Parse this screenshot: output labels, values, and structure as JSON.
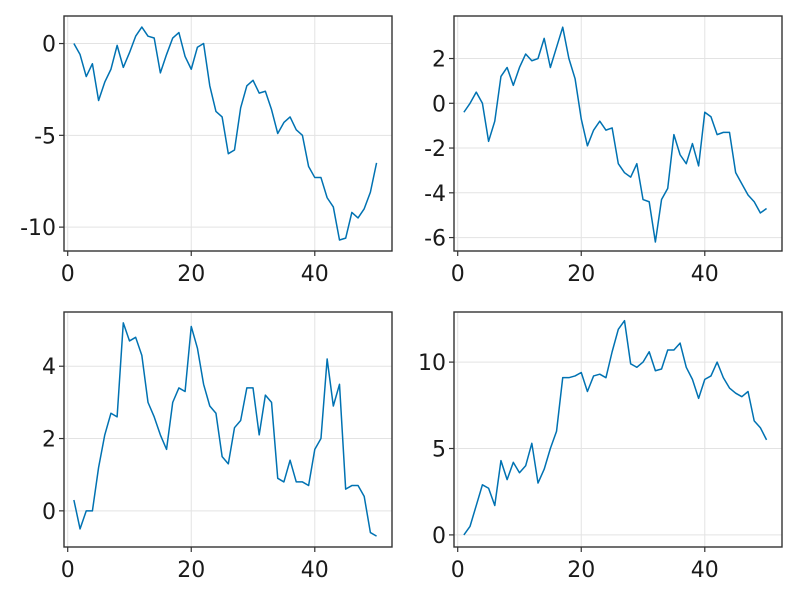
{
  "colors": {
    "line": "#0072B2"
  },
  "chart_data": [
    {
      "type": "line",
      "xlim": [
        -0.6,
        52.5
      ],
      "ylim": [
        -11.3,
        1.5
      ],
      "xticks": [
        0,
        20,
        40
      ],
      "xtick_labels": [
        "0",
        "20",
        "40"
      ],
      "yticks": [
        0,
        -5,
        -10
      ],
      "ytick_labels": [
        "0",
        "-5",
        "-10"
      ],
      "grid": true,
      "series": [
        {
          "x": [
            1,
            2,
            3,
            4,
            5,
            6,
            7,
            8,
            9,
            10,
            11,
            12,
            13,
            14,
            15,
            16,
            17,
            18,
            19,
            20,
            21,
            22,
            23,
            24,
            25,
            26,
            27,
            28,
            29,
            30,
            31,
            32,
            33,
            34,
            35,
            36,
            37,
            38,
            39,
            40,
            41,
            42,
            43,
            44,
            45,
            46,
            47,
            48,
            49,
            50
          ],
          "y": [
            0.0,
            -0.6,
            -1.8,
            -1.1,
            -3.1,
            -2.1,
            -1.4,
            -0.1,
            -1.3,
            -0.5,
            0.4,
            0.9,
            0.4,
            0.3,
            -1.6,
            -0.6,
            0.3,
            0.6,
            -0.7,
            -1.4,
            -0.2,
            0.0,
            -2.3,
            -3.7,
            -4.0,
            -6.0,
            -5.8,
            -3.5,
            -2.3,
            -2.0,
            -2.7,
            -2.6,
            -3.6,
            -4.9,
            -4.3,
            -4.0,
            -4.7,
            -5.0,
            -6.7,
            -7.3,
            -7.3,
            -8.4,
            -8.9,
            -10.7,
            -10.6,
            -9.2,
            -9.5,
            -9.0,
            -8.1,
            -6.5
          ]
        }
      ]
    },
    {
      "type": "line",
      "xlim": [
        -0.6,
        52.5
      ],
      "ylim": [
        -6.6,
        3.9
      ],
      "xticks": [
        0,
        20,
        40
      ],
      "xtick_labels": [
        "0",
        "20",
        "40"
      ],
      "yticks": [
        2,
        0,
        -2,
        -4,
        -6
      ],
      "ytick_labels": [
        "2",
        "0",
        "-2",
        "-4",
        "-6"
      ],
      "grid": true,
      "series": [
        {
          "x": [
            1,
            2,
            3,
            4,
            5,
            6,
            7,
            8,
            9,
            10,
            11,
            12,
            13,
            14,
            15,
            16,
            17,
            18,
            19,
            20,
            21,
            22,
            23,
            24,
            25,
            26,
            27,
            28,
            29,
            30,
            31,
            32,
            33,
            34,
            35,
            36,
            37,
            38,
            39,
            40,
            41,
            42,
            43,
            44,
            45,
            46,
            47,
            48,
            49,
            50
          ],
          "y": [
            -0.4,
            0.0,
            0.5,
            0.0,
            -1.7,
            -0.8,
            1.2,
            1.6,
            0.8,
            1.6,
            2.2,
            1.9,
            2.0,
            2.9,
            1.6,
            2.5,
            3.4,
            2.0,
            1.1,
            -0.7,
            -1.9,
            -1.2,
            -0.8,
            -1.2,
            -1.1,
            -2.7,
            -3.1,
            -3.3,
            -2.7,
            -4.3,
            -4.4,
            -6.2,
            -4.3,
            -3.8,
            -1.4,
            -2.3,
            -2.7,
            -1.8,
            -2.8,
            -0.4,
            -0.6,
            -1.4,
            -1.3,
            -1.3,
            -3.1,
            -3.6,
            -4.1,
            -4.4,
            -4.9,
            -4.7
          ]
        }
      ]
    },
    {
      "type": "line",
      "xlim": [
        -0.6,
        52.5
      ],
      "ylim": [
        -1.0,
        5.5
      ],
      "xticks": [
        0,
        20,
        40
      ],
      "xtick_labels": [
        "0",
        "20",
        "40"
      ],
      "yticks": [
        4,
        2,
        0
      ],
      "ytick_labels": [
        "4",
        "2",
        "0"
      ],
      "grid": true,
      "series": [
        {
          "x": [
            1,
            2,
            3,
            4,
            5,
            6,
            7,
            8,
            9,
            10,
            11,
            12,
            13,
            14,
            15,
            16,
            17,
            18,
            19,
            20,
            21,
            22,
            23,
            24,
            25,
            26,
            27,
            28,
            29,
            30,
            31,
            32,
            33,
            34,
            35,
            36,
            37,
            38,
            39,
            40,
            41,
            42,
            43,
            44,
            45,
            46,
            47,
            48,
            49,
            50
          ],
          "y": [
            0.3,
            -0.5,
            0.0,
            0.0,
            1.2,
            2.1,
            2.7,
            2.6,
            5.2,
            4.7,
            4.8,
            4.3,
            3.0,
            2.6,
            2.1,
            1.7,
            3.0,
            3.4,
            3.3,
            5.1,
            4.5,
            3.5,
            2.9,
            2.7,
            1.5,
            1.3,
            2.3,
            2.5,
            3.4,
            3.4,
            2.1,
            3.2,
            3.0,
            0.9,
            0.8,
            1.4,
            0.8,
            0.8,
            0.7,
            1.7,
            2.0,
            4.2,
            2.9,
            3.5,
            0.6,
            0.7,
            0.7,
            0.4,
            -0.6,
            -0.7
          ]
        }
      ]
    },
    {
      "type": "line",
      "xlim": [
        -0.6,
        52.5
      ],
      "ylim": [
        -0.7,
        12.9
      ],
      "xticks": [
        0,
        20,
        40
      ],
      "xtick_labels": [
        "0",
        "20",
        "40"
      ],
      "yticks": [
        10,
        5,
        0
      ],
      "ytick_labels": [
        "10",
        "5",
        "0"
      ],
      "grid": true,
      "series": [
        {
          "x": [
            1,
            2,
            3,
            4,
            5,
            6,
            7,
            8,
            9,
            10,
            11,
            12,
            13,
            14,
            15,
            16,
            17,
            18,
            19,
            20,
            21,
            22,
            23,
            24,
            25,
            26,
            27,
            28,
            29,
            30,
            31,
            32,
            33,
            34,
            35,
            36,
            37,
            38,
            39,
            40,
            41,
            42,
            43,
            44,
            45,
            46,
            47,
            48,
            49,
            50
          ],
          "y": [
            0.0,
            0.5,
            1.7,
            2.9,
            2.7,
            1.7,
            4.3,
            3.2,
            4.2,
            3.6,
            4.0,
            5.3,
            3.0,
            3.8,
            5.0,
            6.0,
            9.1,
            9.1,
            9.2,
            9.4,
            8.3,
            9.2,
            9.3,
            9.1,
            10.6,
            11.9,
            12.4,
            9.9,
            9.7,
            10.0,
            10.6,
            9.5,
            9.6,
            10.7,
            10.7,
            11.1,
            9.7,
            9.0,
            7.9,
            9.0,
            9.2,
            10.0,
            9.1,
            8.5,
            8.2,
            8.0,
            8.3,
            6.6,
            6.2,
            5.5
          ]
        }
      ]
    }
  ]
}
